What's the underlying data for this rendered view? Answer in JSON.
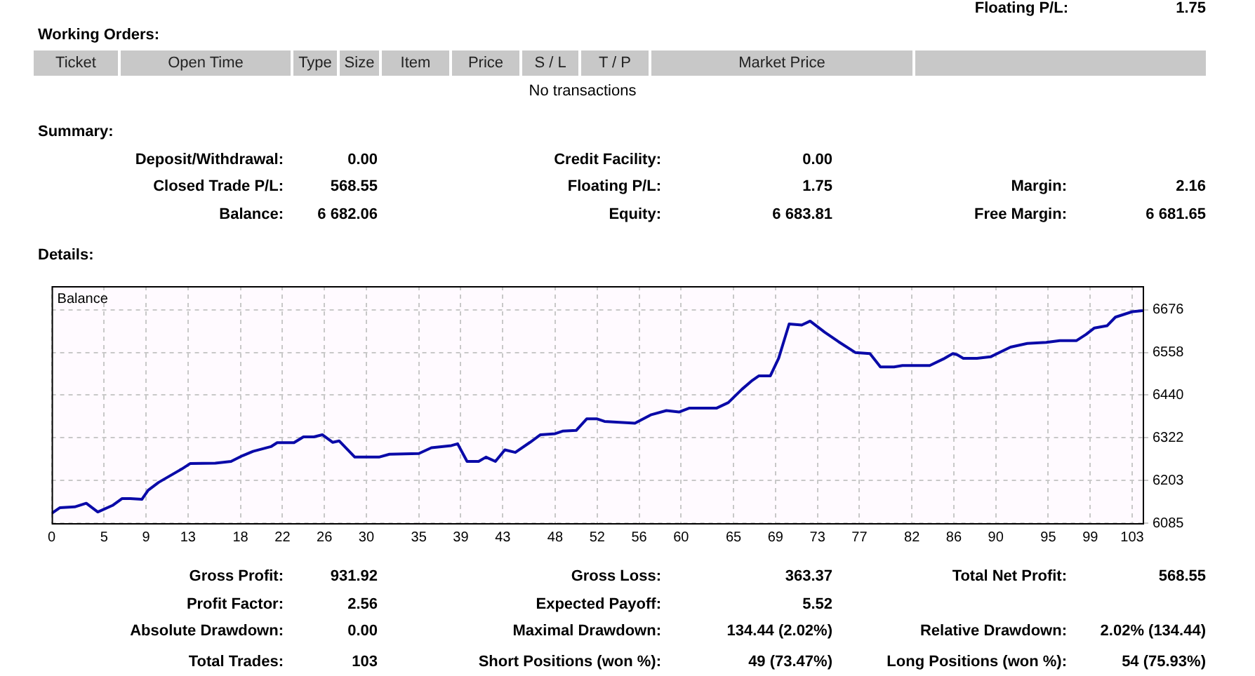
{
  "chart_data": {
    "type": "line",
    "title": "Balance",
    "x": [
      0,
      0.8,
      2.2,
      3.3,
      4.4,
      5.8,
      6.7,
      7.5,
      8.6,
      9.2,
      10.2,
      12.4,
      13.2,
      15.6,
      17.1,
      18.2,
      19.2,
      20.9,
      21.5,
      23.1,
      24,
      25,
      25.8,
      26.8,
      27.4,
      28.9,
      31.2,
      32.2,
      35,
      36.2,
      38.1,
      38.7,
      39.6,
      40.7,
      41.4,
      42.3,
      43.2,
      44.2,
      45.6,
      46.6,
      48,
      48.7,
      50,
      51,
      52,
      52.7,
      55.6,
      57.1,
      58.6,
      59.8,
      60.8,
      63.4,
      64.5,
      65.8,
      66.8,
      67.4,
      68.5,
      69.3,
      70.3,
      71.5,
      72.3,
      73.7,
      75,
      76.6,
      78,
      79,
      80.3,
      81.1,
      83.7,
      85,
      85.9,
      86.3,
      86.9,
      88.2,
      89.5,
      91.4,
      93,
      94.8,
      96.1,
      97.7,
      98.6,
      99.4,
      100.6,
      101.4,
      103,
      104
    ],
    "series": [
      {
        "color": "#0a0aa8",
        "values": [
          6112,
          6128,
          6130,
          6140,
          6116,
          6134,
          6153,
          6153,
          6151,
          6176,
          6198,
          6235,
          6250,
          6251,
          6256,
          6272,
          6284,
          6297,
          6308,
          6308,
          6324,
          6324,
          6330,
          6309,
          6313,
          6268,
          6268,
          6276,
          6278,
          6294,
          6300,
          6305,
          6256,
          6256,
          6268,
          6256,
          6288,
          6281,
          6309,
          6330,
          6333,
          6340,
          6342,
          6374,
          6374,
          6367,
          6362,
          6385,
          6397,
          6393,
          6404,
          6404,
          6419,
          6456,
          6481,
          6493,
          6493,
          6542,
          6637,
          6634,
          6645,
          6614,
          6588,
          6558,
          6555,
          6518,
          6518,
          6522,
          6522,
          6540,
          6555,
          6552,
          6542,
          6542,
          6546,
          6573,
          6583,
          6586,
          6591,
          6591,
          6608,
          6626,
          6632,
          6656,
          6671,
          6674
        ]
      }
    ],
    "xlim": [
      0,
      104
    ],
    "xticks": [
      0,
      5,
      9,
      13,
      18,
      22,
      26,
      30,
      35,
      39,
      43,
      48,
      52,
      56,
      60,
      65,
      69,
      73,
      77,
      82,
      86,
      90,
      95,
      99,
      103
    ],
    "ylim": [
      6085,
      6742
    ],
    "yticks": [
      6085,
      6203,
      6322,
      6440,
      6558,
      6676
    ],
    "grid": true,
    "legend": false,
    "line_style": "solid",
    "annotations": [
      "Floating P/L:",
      "1.75",
      "Working Orders:",
      "Ticket",
      "Open Time",
      "Type",
      "Size",
      "Item",
      "Price",
      "S / L",
      "T / P",
      "Market Price",
      "No transactions",
      "Summary:",
      "Deposit/Withdrawal:",
      "0.00",
      "Credit Facility:",
      "0.00",
      "Closed Trade P/L:",
      "568.55",
      "Floating P/L:",
      "1.75",
      "Margin:",
      "2.16",
      "Balance:",
      "6 682.06",
      "Equity:",
      "6 683.81",
      "Free Margin:",
      "6 681.65",
      "Details:",
      "Gross Profit:",
      "931.92",
      "Gross Loss:",
      "363.37",
      "Total Net Profit:",
      "568.55",
      "Profit Factor:",
      "2.56",
      "Expected Payoff:",
      "5.52",
      "Absolute Drawdown:",
      "0.00",
      "Maximal Drawdown:",
      "134.44 (2.02%)",
      "Relative Drawdown:",
      "2.02% (134.44)",
      "Total Trades:",
      "103",
      "Short Positions (won %):",
      "49 (73.47%)",
      "Long Positions (won %):",
      "54 (75.93%)"
    ]
  }
}
